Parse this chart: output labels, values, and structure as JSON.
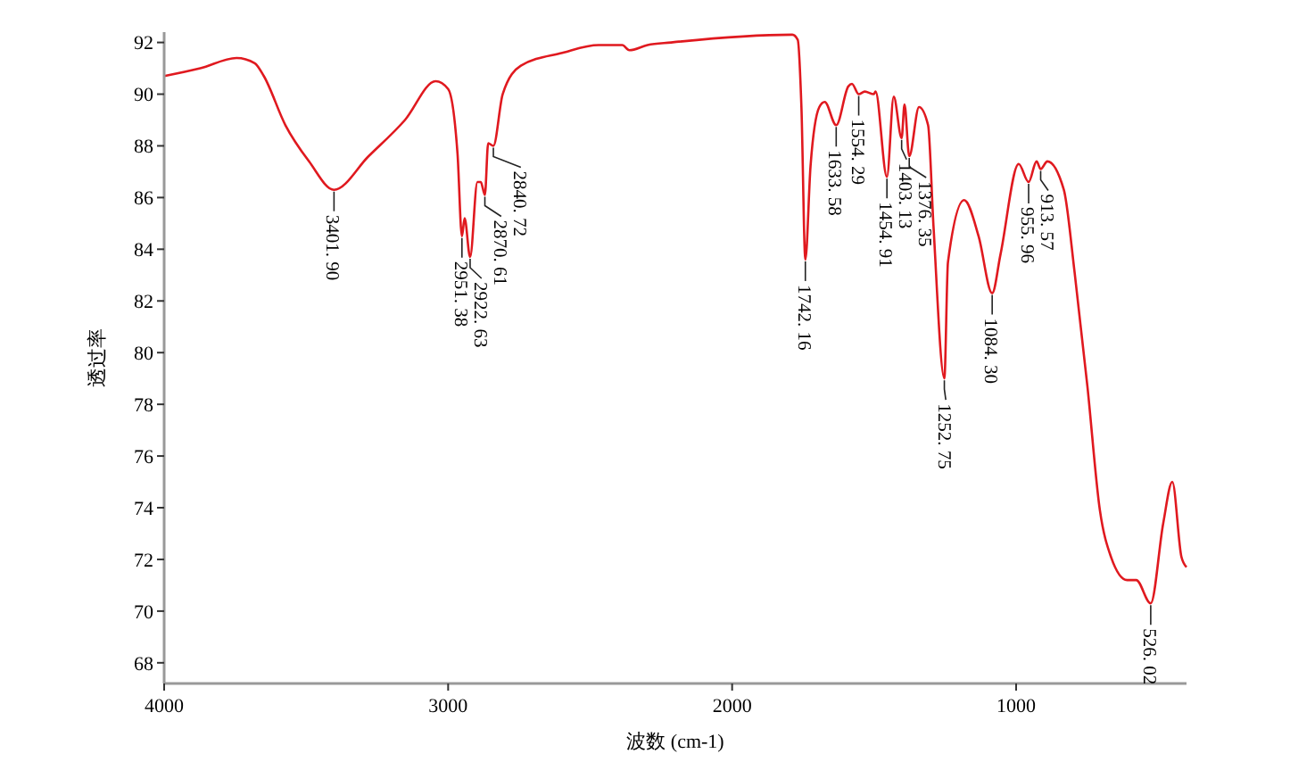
{
  "chart_data": {
    "type": "line",
    "xlabel": "波数 (cm-1)",
    "ylabel": "透过率",
    "xlim": [
      4000,
      400
    ],
    "xticks": [
      4000,
      3000,
      2000,
      1000
    ],
    "ylim": [
      67.2,
      92.4
    ],
    "yticks": [
      68,
      70,
      72,
      74,
      76,
      78,
      80,
      82,
      84,
      86,
      88,
      90,
      92
    ],
    "grid": false,
    "marker": "none",
    "line_style": "solid",
    "series": [
      {
        "color": "#e0191f",
        "x": [
          4000,
          3873,
          3745,
          3681,
          3649,
          3573,
          3490,
          3401.9,
          3280,
          3152,
          3044,
          3000,
          2967,
          2951.38,
          2942,
          2922.63,
          2897,
          2885,
          2870.61,
          2859,
          2840.72,
          2808,
          2744,
          2598,
          2470,
          2387,
          2362,
          2298,
          2215,
          1788,
          1769,
          1756,
          1742.16,
          1724,
          1693,
          1674,
          1633.58,
          1591,
          1578,
          1554.29,
          1533,
          1501,
          1495,
          1454.91,
          1431,
          1403.13,
          1393,
          1376.35,
          1342,
          1310,
          1291,
          1252.75,
          1240,
          1183,
          1132,
          1084.3,
          1055,
          991,
          955.96,
          928,
          913.57,
          890,
          832,
          794,
          749,
          705,
          666,
          609,
          577,
          526.02,
          482,
          450,
          418,
          400
        ],
        "values": [
          90.7,
          91.0,
          91.4,
          91.2,
          90.7,
          88.8,
          87.4,
          86.3,
          87.6,
          89.0,
          90.5,
          90.2,
          87.7,
          84.5,
          85.2,
          83.7,
          86.6,
          86.6,
          86.1,
          88.1,
          88.0,
          90.0,
          91.1,
          91.6,
          91.9,
          91.9,
          91.7,
          91.9,
          92.0,
          92.3,
          92.1,
          89.5,
          83.6,
          87.2,
          89.5,
          89.7,
          88.8,
          90.3,
          90.4,
          90.0,
          90.1,
          90.0,
          90.1,
          86.8,
          89.9,
          88.3,
          89.6,
          87.6,
          89.5,
          88.8,
          84.9,
          79.0,
          83.5,
          85.9,
          84.5,
          82.3,
          83.8,
          87.3,
          86.6,
          87.4,
          87.1,
          87.4,
          86.3,
          83.1,
          78.7,
          73.9,
          72.1,
          71.2,
          71.2,
          70.3,
          73.4,
          75.0,
          72.1,
          71.7
        ]
      }
    ],
    "annotations": [
      {
        "text": "3401. 90",
        "x": 3401.9,
        "y": 86.3
      },
      {
        "text": "2951. 38",
        "x": 2951.38,
        "y": 84.5
      },
      {
        "text": "2922. 63",
        "x": 2922.63,
        "y": 83.7
      },
      {
        "text": "2870. 61",
        "x": 2870.61,
        "y": 86.1
      },
      {
        "text": "2840. 72",
        "x": 2840.72,
        "y": 88.0
      },
      {
        "text": "1742. 16",
        "x": 1742.16,
        "y": 83.6
      },
      {
        "text": "1633. 58",
        "x": 1633.58,
        "y": 88.8
      },
      {
        "text": "1554. 29",
        "x": 1554.29,
        "y": 90.0
      },
      {
        "text": "1454. 91",
        "x": 1454.91,
        "y": 86.8
      },
      {
        "text": "1403. 13",
        "x": 1403.13,
        "y": 88.3
      },
      {
        "text": "1376. 35",
        "x": 1376.35,
        "y": 87.6
      },
      {
        "text": "1252. 75",
        "x": 1252.75,
        "y": 79.0
      },
      {
        "text": "1084. 30",
        "x": 1084.3,
        "y": 82.3
      },
      {
        "text": "955. 96",
        "x": 955.96,
        "y": 86.6
      },
      {
        "text": "913. 57",
        "x": 913.57,
        "y": 87.1
      },
      {
        "text": "526. 02",
        "x": 526.02,
        "y": 70.3
      }
    ]
  }
}
